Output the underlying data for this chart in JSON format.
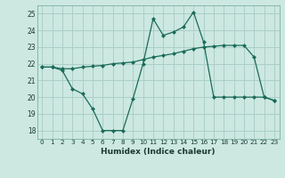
{
  "xlabel": "Humidex (Indice chaleur)",
  "ylabel": "",
  "background_color": "#cce8e0",
  "grid_color": "#aacfc8",
  "line_color": "#1a6b5a",
  "xlim": [
    -0.5,
    23.5
  ],
  "ylim": [
    17.5,
    25.5
  ],
  "yticks": [
    18,
    19,
    20,
    21,
    22,
    23,
    24,
    25
  ],
  "xticks": [
    0,
    1,
    2,
    3,
    4,
    5,
    6,
    7,
    8,
    9,
    10,
    11,
    12,
    13,
    14,
    15,
    16,
    17,
    18,
    19,
    20,
    21,
    22,
    23
  ],
  "series1_x": [
    0,
    1,
    2,
    3,
    4,
    5,
    6,
    7,
    8,
    9,
    10,
    11,
    12,
    13,
    14,
    15,
    16,
    17,
    18,
    19,
    20,
    21,
    22,
    23
  ],
  "series1_y": [
    21.8,
    21.8,
    21.7,
    21.7,
    21.8,
    21.85,
    21.9,
    22.0,
    22.05,
    22.1,
    22.25,
    22.4,
    22.5,
    22.6,
    22.75,
    22.9,
    23.0,
    23.05,
    23.1,
    23.1,
    23.1,
    22.4,
    20.0,
    19.8
  ],
  "series2_x": [
    0,
    1,
    2,
    3,
    4,
    5,
    6,
    7,
    8,
    9,
    10,
    11,
    12,
    13,
    14,
    15,
    16,
    17,
    18,
    19,
    20,
    21,
    22,
    23
  ],
  "series2_y": [
    21.8,
    21.8,
    21.6,
    20.5,
    20.2,
    19.3,
    18.0,
    18.0,
    18.0,
    19.9,
    22.0,
    24.7,
    23.7,
    23.9,
    24.2,
    25.1,
    23.3,
    20.0,
    20.0,
    20.0,
    20.0,
    20.0,
    20.0,
    19.8
  ]
}
